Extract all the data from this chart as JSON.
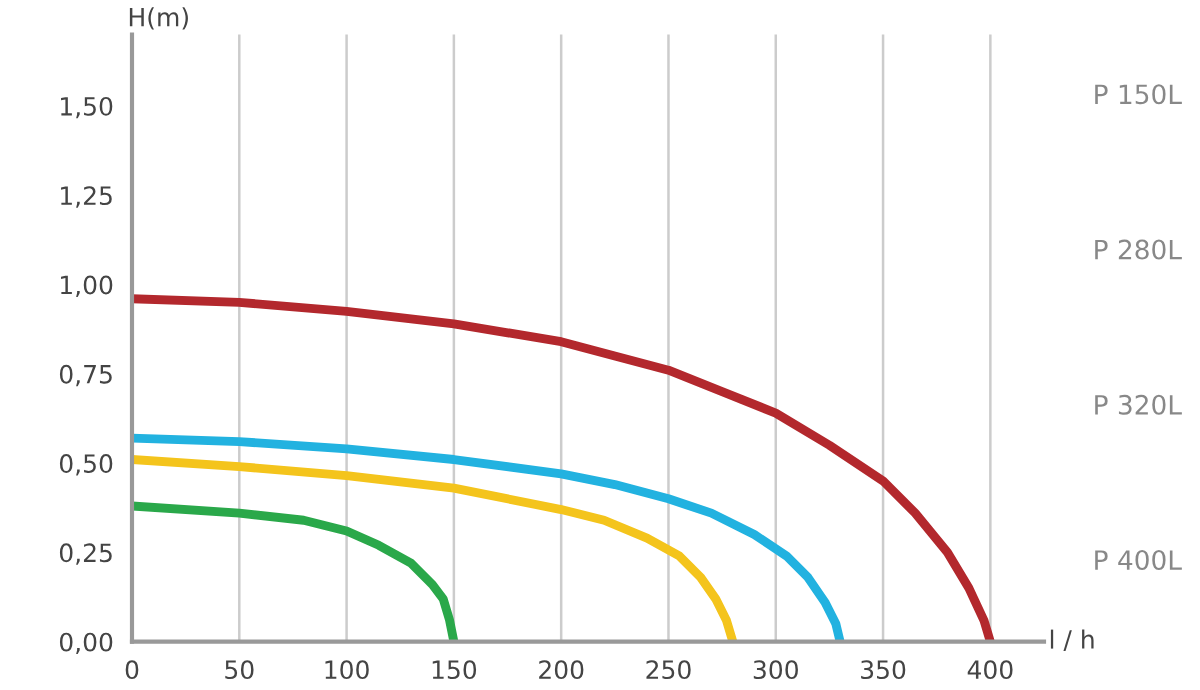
{
  "chart_data": {
    "type": "line",
    "xlabel": "l / h",
    "ylabel": "H(m)",
    "xlim": [
      0,
      425
    ],
    "ylim": [
      0,
      1.7
    ],
    "xticks": [
      0,
      50,
      100,
      150,
      200,
      250,
      300,
      350,
      400
    ],
    "yticks": [
      {
        "value": 0,
        "label": "0,00"
      },
      {
        "value": 0.25,
        "label": "0,25"
      },
      {
        "value": 0.5,
        "label": "0,50"
      },
      {
        "value": 0.75,
        "label": "0,75"
      },
      {
        "value": 1.0,
        "label": "1,00"
      },
      {
        "value": 1.25,
        "label": "1,25"
      },
      {
        "value": 1.5,
        "label": "1,50"
      }
    ],
    "grid": "x",
    "marker": "none",
    "line_style": "solid",
    "series": [
      {
        "color": "#b3282d",
        "x": [
          0,
          50,
          100,
          150,
          200,
          225,
          250,
          275,
          300,
          325,
          350,
          365,
          380,
          390,
          397,
          400
        ],
        "values": [
          0.96,
          0.95,
          0.925,
          0.89,
          0.84,
          0.8,
          0.76,
          0.7,
          0.64,
          0.55,
          0.45,
          0.36,
          0.25,
          0.15,
          0.06,
          0.0
        ]
      },
      {
        "color": "#22b2e0",
        "x": [
          0,
          50,
          100,
          150,
          200,
          225,
          250,
          270,
          290,
          305,
          315,
          323,
          328,
          330
        ],
        "values": [
          0.57,
          0.56,
          0.54,
          0.51,
          0.47,
          0.44,
          0.4,
          0.36,
          0.3,
          0.24,
          0.18,
          0.11,
          0.05,
          0.0
        ]
      },
      {
        "color": "#f4c41c",
        "x": [
          0,
          50,
          100,
          150,
          200,
          220,
          240,
          255,
          265,
          272,
          277,
          280
        ],
        "values": [
          0.51,
          0.49,
          0.465,
          0.43,
          0.37,
          0.34,
          0.29,
          0.24,
          0.18,
          0.12,
          0.06,
          0.0
        ]
      },
      {
        "color": "#2aa84a",
        "x": [
          0,
          50,
          80,
          100,
          115,
          130,
          140,
          145,
          148,
          150
        ],
        "values": [
          0.38,
          0.36,
          0.34,
          0.31,
          0.27,
          0.22,
          0.16,
          0.12,
          0.06,
          0.0
        ]
      }
    ],
    "annotations": [
      "P 150L",
      "P 280L",
      "P 320L",
      "P 400L"
    ]
  }
}
